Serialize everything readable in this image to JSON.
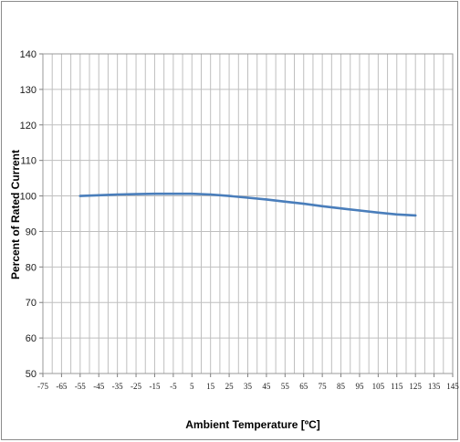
{
  "chart_data": {
    "type": "line",
    "title": "",
    "xlabel": "Ambient Temperature [ºC]",
    "ylabel": "Percent of Rated Current",
    "xlim": [
      -75,
      145
    ],
    "ylim": [
      50,
      140
    ],
    "x_ticks": [
      -75,
      -65,
      -55,
      -45,
      -35,
      -25,
      -15,
      -5,
      5,
      15,
      25,
      35,
      45,
      55,
      65,
      75,
      85,
      95,
      105,
      115,
      125,
      135,
      145
    ],
    "y_ticks": [
      50,
      60,
      70,
      80,
      90,
      100,
      110,
      120,
      130,
      140
    ],
    "grid": true,
    "legend": "none",
    "series": [
      {
        "color": "#4a7ebb",
        "x": [
          -55,
          -45,
          -35,
          -25,
          -15,
          -5,
          5,
          15,
          25,
          35,
          45,
          55,
          65,
          75,
          85,
          95,
          105,
          115,
          125
        ],
        "y": [
          100.0,
          100.2,
          100.4,
          100.5,
          100.6,
          100.6,
          100.6,
          100.4,
          100.0,
          99.5,
          99.0,
          98.4,
          97.8,
          97.1,
          96.5,
          95.9,
          95.3,
          94.8,
          94.5
        ]
      }
    ]
  }
}
